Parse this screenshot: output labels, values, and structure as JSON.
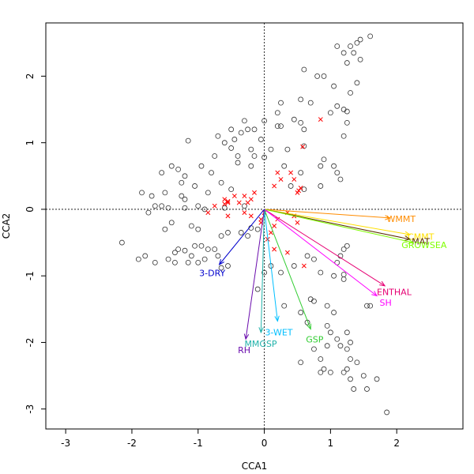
{
  "chart_data": {
    "type": "scatter",
    "title": "",
    "xlabel": "CCA1",
    "ylabel": "CCA2",
    "xlim": [
      -3.3,
      3.0
    ],
    "ylim": [
      -3.3,
      2.8
    ],
    "xticks": [
      -3,
      -2,
      -1,
      0,
      1,
      2
    ],
    "yticks": [
      -3,
      -2,
      -1,
      0,
      1,
      2
    ],
    "site_points": [
      [
        1.6,
        2.6
      ],
      [
        1.45,
        2.55
      ],
      [
        1.4,
        2.5
      ],
      [
        1.3,
        2.45
      ],
      [
        1.1,
        2.45
      ],
      [
        1.2,
        2.35
      ],
      [
        1.35,
        2.35
      ],
      [
        1.45,
        2.25
      ],
      [
        1.25,
        2.2
      ],
      [
        0.6,
        2.1
      ],
      [
        0.8,
        2.0
      ],
      [
        0.9,
        2.0
      ],
      [
        1.4,
        1.9
      ],
      [
        1.05,
        1.85
      ],
      [
        1.3,
        1.75
      ],
      [
        0.55,
        1.65
      ],
      [
        0.7,
        1.6
      ],
      [
        1.1,
        1.55
      ],
      [
        1.2,
        1.5
      ],
      [
        1.25,
        1.47
      ],
      [
        1.0,
        1.45
      ],
      [
        0.25,
        1.6
      ],
      [
        0.2,
        1.45
      ],
      [
        0.0,
        1.33
      ],
      [
        -0.3,
        1.33
      ],
      [
        -0.5,
        1.2
      ],
      [
        -0.45,
        1.05
      ],
      [
        -0.7,
        1.1
      ],
      [
        -0.25,
        1.2
      ],
      [
        -0.35,
        1.15
      ],
      [
        -0.6,
        1.0
      ],
      [
        -0.15,
        1.2
      ],
      [
        -0.05,
        1.05
      ],
      [
        0.2,
        1.25
      ],
      [
        0.55,
        1.3
      ],
      [
        0.6,
        1.2
      ],
      [
        1.25,
        1.3
      ],
      [
        1.2,
        1.1
      ],
      [
        0.25,
        1.25
      ],
      [
        0.45,
        1.35
      ],
      [
        -1.15,
        1.03
      ],
      [
        -0.75,
        0.8
      ],
      [
        -0.95,
        0.65
      ],
      [
        -0.8,
        0.55
      ],
      [
        -0.2,
        0.9
      ],
      [
        -0.5,
        0.92
      ],
      [
        -0.4,
        0.8
      ],
      [
        0.1,
        0.9
      ],
      [
        0.35,
        0.9
      ],
      [
        0.6,
        0.95
      ],
      [
        -0.15,
        0.8
      ],
      [
        0.0,
        0.78
      ],
      [
        -0.4,
        0.7
      ],
      [
        -0.2,
        0.65
      ],
      [
        0.3,
        0.65
      ],
      [
        0.55,
        0.55
      ],
      [
        0.85,
        0.65
      ],
      [
        0.9,
        0.75
      ],
      [
        1.05,
        0.65
      ],
      [
        1.1,
        0.55
      ],
      [
        1.15,
        0.45
      ],
      [
        0.85,
        0.35
      ],
      [
        0.6,
        0.3
      ],
      [
        0.4,
        0.35
      ],
      [
        -1.4,
        0.65
      ],
      [
        -1.3,
        0.6
      ],
      [
        -1.2,
        0.5
      ],
      [
        -1.55,
        0.55
      ],
      [
        -1.25,
        0.4
      ],
      [
        -1.05,
        0.35
      ],
      [
        -0.65,
        0.4
      ],
      [
        -0.5,
        0.3
      ],
      [
        -0.85,
        0.25
      ],
      [
        -1.25,
        0.2
      ],
      [
        -1.2,
        0.15
      ],
      [
        -1.5,
        0.25
      ],
      [
        -1.7,
        0.2
      ],
      [
        -1.85,
        0.25
      ],
      [
        -1.65,
        0.05
      ],
      [
        -1.55,
        0.05
      ],
      [
        -1.45,
        0.02
      ],
      [
        -1.75,
        -0.05
      ],
      [
        -1.2,
        0.02
      ],
      [
        -1.0,
        0.05
      ],
      [
        -0.9,
        0.0
      ],
      [
        -0.6,
        0.02
      ],
      [
        -0.3,
        0.05
      ],
      [
        -1.4,
        -0.2
      ],
      [
        -1.5,
        -0.3
      ],
      [
        -1.1,
        -0.25
      ],
      [
        -1.0,
        -0.3
      ],
      [
        -0.65,
        -0.4
      ],
      [
        -0.55,
        -0.35
      ],
      [
        -0.35,
        -0.35
      ],
      [
        -0.25,
        -0.4
      ],
      [
        -0.2,
        -0.28
      ],
      [
        -0.1,
        -0.3
      ],
      [
        -2.15,
        -0.5
      ],
      [
        -1.9,
        -0.75
      ],
      [
        -1.8,
        -0.7
      ],
      [
        -1.65,
        -0.8
      ],
      [
        -1.35,
        -0.65
      ],
      [
        -1.3,
        -0.6
      ],
      [
        -1.2,
        -0.62
      ],
      [
        -1.1,
        -0.7
      ],
      [
        -1.05,
        -0.55
      ],
      [
        -0.95,
        -0.55
      ],
      [
        -0.85,
        -0.6
      ],
      [
        -0.75,
        -0.6
      ],
      [
        -0.7,
        -0.7
      ],
      [
        -0.9,
        -0.75
      ],
      [
        -1.0,
        -0.8
      ],
      [
        -1.15,
        -0.8
      ],
      [
        -1.35,
        -0.8
      ],
      [
        -1.45,
        -0.75
      ],
      [
        -0.55,
        -0.85
      ],
      [
        -0.65,
        -0.88
      ],
      [
        0.1,
        -0.85
      ],
      [
        0.0,
        -0.95
      ],
      [
        0.25,
        -0.95
      ],
      [
        -0.1,
        -1.2
      ],
      [
        0.45,
        -0.85
      ],
      [
        0.65,
        -0.7
      ],
      [
        0.75,
        -0.75
      ],
      [
        0.85,
        -0.95
      ],
      [
        1.1,
        -0.8
      ],
      [
        1.15,
        -0.7
      ],
      [
        1.2,
        -0.6
      ],
      [
        1.25,
        -0.55
      ],
      [
        1.05,
        -1.0
      ],
      [
        1.2,
        -1.05
      ],
      [
        1.2,
        -0.98
      ],
      [
        0.7,
        -1.35
      ],
      [
        0.75,
        -1.38
      ],
      [
        0.65,
        -1.7
      ],
      [
        0.95,
        -1.45
      ],
      [
        1.05,
        -1.55
      ],
      [
        1.55,
        -1.45
      ],
      [
        1.6,
        -1.45
      ],
      [
        1.0,
        -1.85
      ],
      [
        1.1,
        -1.95
      ],
      [
        0.95,
        -2.05
      ],
      [
        1.15,
        -2.05
      ],
      [
        1.25,
        -2.1
      ],
      [
        1.3,
        -2.0
      ],
      [
        0.75,
        -2.1
      ],
      [
        0.55,
        -2.3
      ],
      [
        0.85,
        -2.25
      ],
      [
        0.9,
        -2.4
      ],
      [
        0.85,
        -2.45
      ],
      [
        1.3,
        -2.25
      ],
      [
        1.25,
        -2.4
      ],
      [
        1.4,
        -2.3
      ],
      [
        1.0,
        -2.45
      ],
      [
        1.2,
        -2.45
      ],
      [
        1.3,
        -2.55
      ],
      [
        1.35,
        -2.7
      ],
      [
        1.5,
        -2.5
      ],
      [
        1.55,
        -2.7
      ],
      [
        1.7,
        -2.55
      ],
      [
        1.85,
        -3.05
      ],
      [
        1.25,
        -1.85
      ],
      [
        0.95,
        -1.75
      ],
      [
        0.55,
        -1.55
      ],
      [
        0.3,
        -1.45
      ]
    ],
    "species_points": [
      [
        0.85,
        1.35
      ],
      [
        0.58,
        0.94
      ],
      [
        0.4,
        0.55
      ],
      [
        0.45,
        0.45
      ],
      [
        0.55,
        0.32
      ],
      [
        0.52,
        0.28
      ],
      [
        0.2,
        0.55
      ],
      [
        0.25,
        0.45
      ],
      [
        0.15,
        0.35
      ],
      [
        -0.15,
        0.25
      ],
      [
        -0.3,
        0.2
      ],
      [
        -0.2,
        0.15
      ],
      [
        -0.25,
        0.1
      ],
      [
        -0.38,
        0.1
      ],
      [
        -0.55,
        0.12
      ],
      [
        -0.6,
        0.08
      ],
      [
        -0.75,
        0.05
      ],
      [
        -0.55,
        0.1
      ],
      [
        -0.6,
        0.15
      ],
      [
        -0.45,
        0.2
      ],
      [
        -0.55,
        -0.1
      ],
      [
        -0.3,
        -0.05
      ],
      [
        -0.2,
        -0.1
      ],
      [
        0.0,
        -0.05
      ],
      [
        -0.05,
        -0.15
      ],
      [
        0.15,
        -0.25
      ],
      [
        0.2,
        -0.15
      ],
      [
        0.35,
        -0.05
      ],
      [
        0.45,
        -0.1
      ],
      [
        0.5,
        -0.2
      ],
      [
        0.1,
        -0.35
      ],
      [
        -0.05,
        -0.2
      ],
      [
        0.05,
        -0.45
      ],
      [
        0.15,
        -0.6
      ],
      [
        0.35,
        -0.65
      ],
      [
        0.6,
        -0.85
      ],
      [
        -0.85,
        -0.05
      ],
      [
        0.5,
        0.25
      ]
    ],
    "vectors": [
      {
        "label": "WMMT",
        "x": 1.9,
        "y": -0.13,
        "color": "#ff8c00"
      },
      {
        "label": "CMMT",
        "x": 2.2,
        "y": -0.38,
        "color": "#ffe000"
      },
      {
        "label": "MAT",
        "x": 2.2,
        "y": -0.45,
        "color": "#5a2d00"
      },
      {
        "label": "GROWSEA",
        "x": 2.25,
        "y": -0.5,
        "color": "#7fff00"
      },
      {
        "label": "ENTHAL",
        "x": 1.82,
        "y": -1.15,
        "color": "#e60073"
      },
      {
        "label": "SH",
        "x": 1.7,
        "y": -1.3,
        "color": "#ff00ff"
      },
      {
        "label": "GSP",
        "x": 0.7,
        "y": -1.8,
        "color": "#32cd32"
      },
      {
        "label": "3-WET",
        "x": 0.2,
        "y": -1.68,
        "color": "#00bfff"
      },
      {
        "label": "MMGSP",
        "x": -0.05,
        "y": -1.85,
        "color": "#20b2aa"
      },
      {
        "label": "RH",
        "x": -0.28,
        "y": -1.95,
        "color": "#6a0dad"
      },
      {
        "label": "3-DRY",
        "x": -0.68,
        "y": -0.83,
        "color": "#0000cd"
      }
    ]
  }
}
